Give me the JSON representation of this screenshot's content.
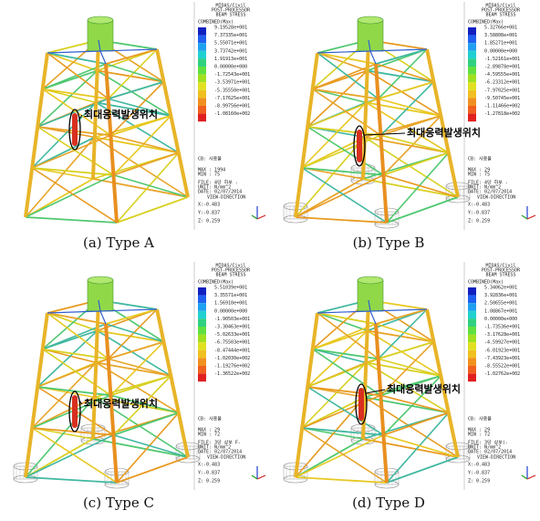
{
  "scale_colors": [
    "#1020c0",
    "#2060f0",
    "#20a0f0",
    "#20d0d0",
    "#30d080",
    "#60e040",
    "#a0e020",
    "#e0e020",
    "#f0c020",
    "#f09020",
    "#f06020",
    "#e02020"
  ],
  "panels": [
    {
      "caption": "(a) Type A",
      "annotation": "최대응력발생위치",
      "legend": {
        "program": "MIDAS/Civil",
        "module": "POST-PROCESSOR",
        "result": "BEAM STRESS",
        "component": "COMBINED(Max)",
        "values": [
          "9.19528e+001",
          "7.37335e+001",
          "5.55071e+001",
          "3.73742e+001",
          "1.91913e+001",
          "0.00000e+000",
          "-1.72543e+001",
          "-3.53971e+001",
          "-5.35550e+001",
          "-7.17625e+001",
          "-8.99756e+001",
          "-1.08160e+002"
        ],
        "cb": "CB: 사용불",
        "max": "MAX : 1994",
        "min": "MIN : 75",
        "file": "FILE: 4단 하부 -",
        "unit": "UNIT: N/mm^2",
        "date": "DATE: 02/07/2014",
        "view": "VIEW-DIRECTION",
        "vx": "X:-0.483",
        "vy": "Y:-0.837",
        "vz": "Z: 0.259"
      }
    },
    {
      "caption": "(b) Type B",
      "annotation": "최대응력발생위치",
      "legend": {
        "program": "MIDAS/Civil",
        "module": "POST-PROCESSOR",
        "result": "BEAM STRESS",
        "component": "COMBINED(Max)",
        "values": [
          "5.32766e+001",
          "3.58808e+001",
          "1.85271e+001",
          "0.00000e+000",
          "-1.52161e+001",
          "-2.89878e+001",
          "-4.59555e+001",
          "-6.23312e+001",
          "-7.97025e+001",
          "-9.50745e+001",
          "-1.11466e+002",
          "-1.27818e+002"
        ],
        "cb": "CB: 사용불",
        "max": "MAX : 29",
        "min": "MIN : 75",
        "file": "FILE: 4단 하부 -",
        "unit": "UNIT: N/mm^2",
        "date": "DATE: 02/07/2014",
        "view": "VIEW-DIRECTION",
        "vx": "X:-0.483",
        "vy": "Y:-0.837",
        "vz": "Z: 0.259"
      }
    },
    {
      "caption": "(c) Type C",
      "annotation": "최대응력발생위치",
      "legend": {
        "program": "MIDAS/Civil",
        "module": "POST-PROCESSOR",
        "result": "BEAM STRESS",
        "component": "COMBINED(Max)",
        "values": [
          "5.51039e+001",
          "3.35571e+001",
          "1.56910e+001",
          "0.00000e+000",
          "-1.90503e+001",
          "-3.30463e+001",
          "-5.02633e+001",
          "-6.75503e+001",
          "-8.47444e+001",
          "-1.02030e+002",
          "-1.19276e+002",
          "-1.36522e+002"
        ],
        "cb": "CB: 사용불",
        "max": "MAX : 29",
        "min": "MIN : 72",
        "file": "FILE: 3단 상부 F-",
        "unit": "UNIT: N/mm^2",
        "date": "DATE: 02/07/2014",
        "view": "VIEW-DIRECTION",
        "vx": "X:-0.483",
        "vy": "Y:-0.837",
        "vz": "Z: 0.259"
      }
    },
    {
      "caption": "(d) Type D",
      "annotation": "최대응력발생위치",
      "legend": {
        "program": "MIDAS/Civil",
        "module": "POST-PROCESSOR",
        "result": "BEAM STRESS",
        "component": "COMBINED(Max)",
        "values": [
          "5.34062e+001",
          "3.92836e+001",
          "2.50655e+001",
          "1.08867e+001",
          "0.00000e+000",
          "-1.73536e+001",
          "-3.17628e+001",
          "-4.59927e+001",
          "-6.01923e+001",
          "-7.43923e+001",
          "-8.55522e+001",
          "-1.02762e+002"
        ],
        "cb": "CB: 사용불",
        "max": "MAX : 29",
        "min": "MIN : 72",
        "file": "FILE: 3단 상부(-",
        "unit": "UNIT: N/mm^2",
        "date": "DATE: 02/07/2014",
        "view": "VIEW-DIRECTION",
        "vx": "X:-0.483",
        "vy": "Y:-0.837",
        "vz": "Z: 0.259"
      }
    }
  ]
}
